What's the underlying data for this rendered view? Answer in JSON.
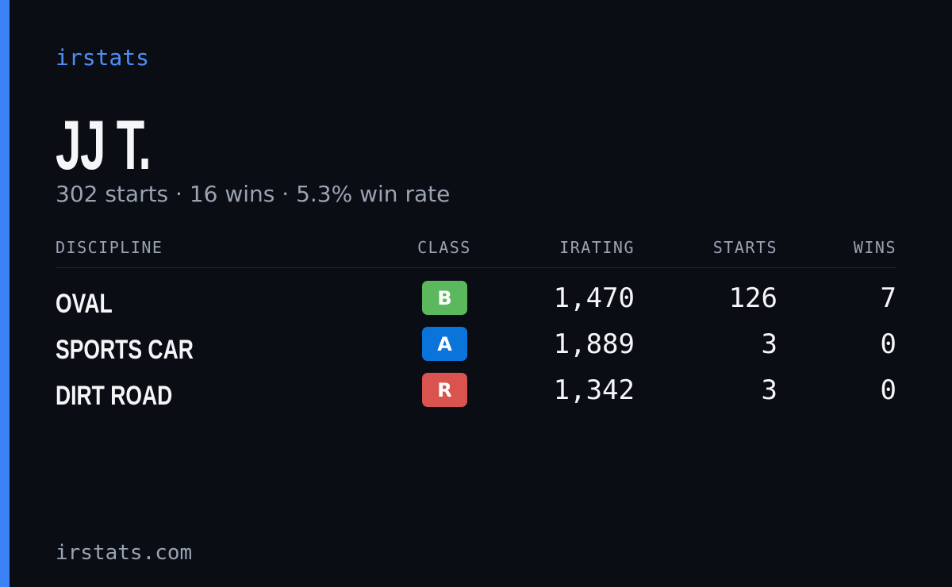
{
  "brand": "irstats",
  "driver": {
    "name": "JJ T.",
    "summary": "302 starts · 16 wins · 5.3% win rate"
  },
  "table": {
    "headers": [
      "DISCIPLINE",
      "CLASS",
      "IRATING",
      "STARTS",
      "WINS"
    ],
    "rows": [
      {
        "discipline": "OVAL",
        "class": "B",
        "class_color": "#5cb85c",
        "irating": "1,470",
        "starts": "126",
        "wins": "7"
      },
      {
        "discipline": "SPORTS CAR",
        "class": "A",
        "class_color": "#0b74db",
        "irating": "1,889",
        "starts": "3",
        "wins": "0"
      },
      {
        "discipline": "DIRT ROAD",
        "class": "R",
        "class_color": "#d9534f",
        "irating": "1,342",
        "starts": "3",
        "wins": "0"
      }
    ]
  },
  "footer": "irstats.com"
}
